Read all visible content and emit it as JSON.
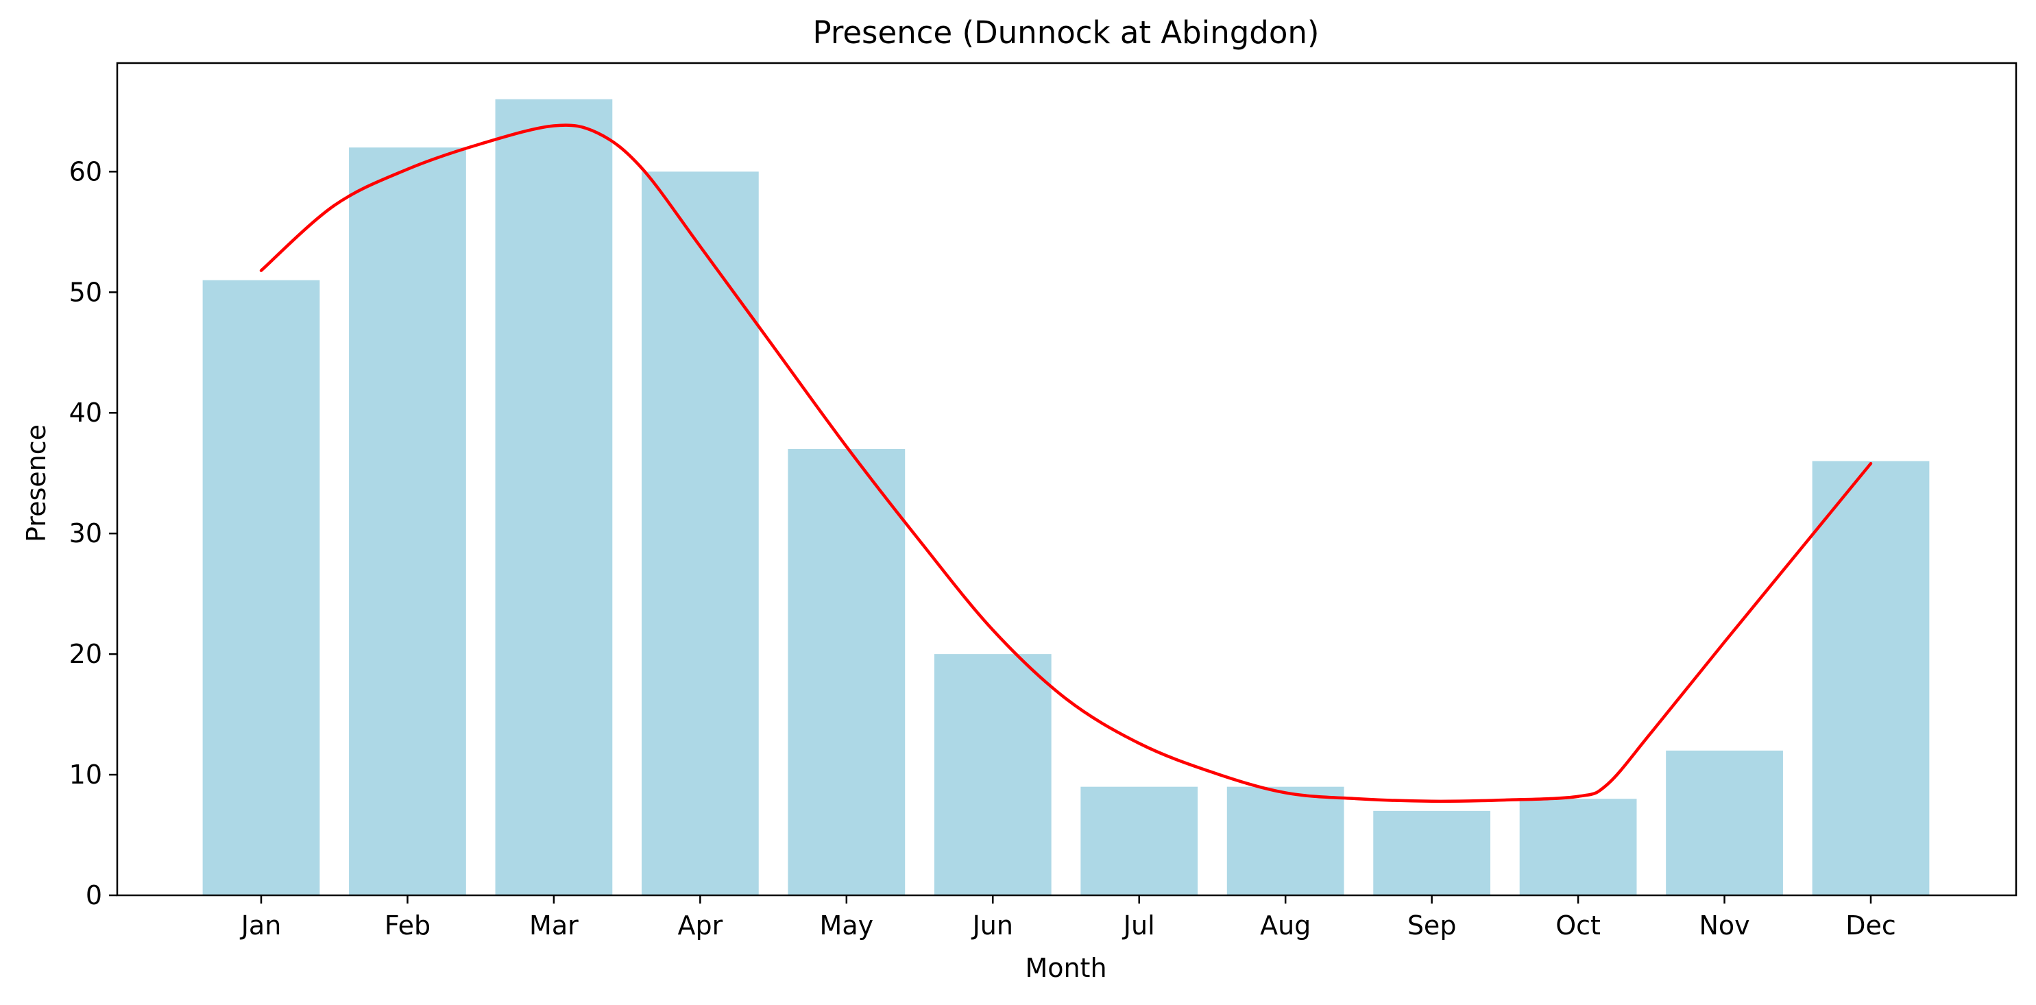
{
  "chart_data": {
    "type": "bar",
    "title": "Presence (Dunnock at Abingdon)",
    "xlabel": "Month",
    "ylabel": "Presence",
    "categories": [
      "Jan",
      "Feb",
      "Mar",
      "Apr",
      "May",
      "Jun",
      "Jul",
      "Aug",
      "Sep",
      "Oct",
      "Nov",
      "Dec"
    ],
    "values": [
      51,
      62,
      66,
      60,
      37,
      20,
      9,
      9,
      7,
      8,
      12,
      36
    ],
    "trend_line": [
      {
        "x": 0,
        "y": 51.8
      },
      {
        "x": 0.5,
        "y": 57.2
      },
      {
        "x": 1,
        "y": 60.2
      },
      {
        "x": 1.5,
        "y": 62.3
      },
      {
        "x": 2,
        "y": 63.8
      },
      {
        "x": 2.3,
        "y": 63.2
      },
      {
        "x": 2.6,
        "y": 60.3
      },
      {
        "x": 3,
        "y": 53.8
      },
      {
        "x": 3.5,
        "y": 45.5
      },
      {
        "x": 4,
        "y": 37.2
      },
      {
        "x": 4.5,
        "y": 29.4
      },
      {
        "x": 5,
        "y": 22.0
      },
      {
        "x": 5.5,
        "y": 16.3
      },
      {
        "x": 6,
        "y": 12.6
      },
      {
        "x": 6.5,
        "y": 10.2
      },
      {
        "x": 7,
        "y": 8.5
      },
      {
        "x": 7.5,
        "y": 8.0
      },
      {
        "x": 8,
        "y": 7.8
      },
      {
        "x": 8.5,
        "y": 7.9
      },
      {
        "x": 9,
        "y": 8.2
      },
      {
        "x": 9.2,
        "y": 9.2
      },
      {
        "x": 9.5,
        "y": 13.5
      },
      {
        "x": 10,
        "y": 21.0
      },
      {
        "x": 10.5,
        "y": 28.4
      },
      {
        "x": 11,
        "y": 35.8
      }
    ],
    "ylim": [
      0,
      69
    ],
    "yticks": [
      0,
      10,
      20,
      30,
      40,
      50,
      60
    ],
    "bar_color": "#add8e6",
    "line_color": "#ff0000",
    "grid": false
  }
}
